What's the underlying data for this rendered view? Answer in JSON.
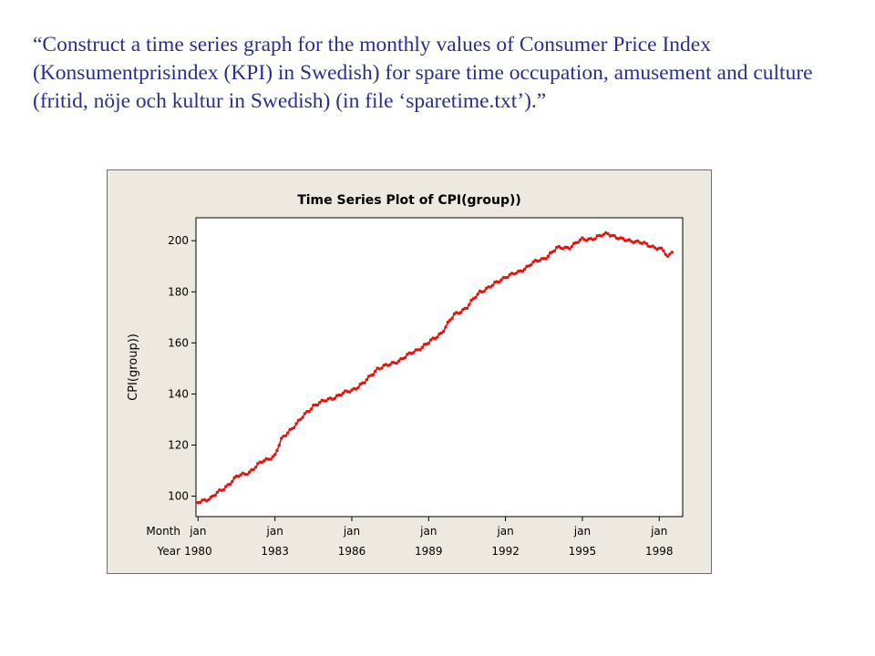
{
  "slide": {
    "text": "“Construct a time series graph for the monthly values of Consumer Price Index (Konsumentprisindex (KPI) in Swedish) for spare time occupation, amusement and culture (fritid, nöje och kultur in Swedish) (in file ‘sparetime.txt’).”"
  },
  "colors": {
    "series": "#e8120c",
    "frame_bg": "#ede9e0",
    "plot_bg": "#ffffff",
    "text": "#2b2f8c"
  },
  "chart_data": {
    "type": "line",
    "title": "Time Series Plot of CPI(group))",
    "xlabel": "",
    "ylabel": "CPI(group))",
    "x_row_labels": [
      "Month",
      "Year"
    ],
    "x_ticks": [
      {
        "month": "jan",
        "year": "1980"
      },
      {
        "month": "jan",
        "year": "1983"
      },
      {
        "month": "jan",
        "year": "1986"
      },
      {
        "month": "jan",
        "year": "1989"
      },
      {
        "month": "jan",
        "year": "1992"
      },
      {
        "month": "jan",
        "year": "1995"
      },
      {
        "month": "jan",
        "year": "1998"
      }
    ],
    "y_ticks": [
      100,
      120,
      140,
      160,
      180,
      200
    ],
    "ylim": [
      92,
      209
    ],
    "xlim": [
      "1979-12",
      "1998-12"
    ],
    "grid": false,
    "markers": "filled-circle",
    "series": [
      {
        "name": "",
        "points": [
          [
            "1980-01",
            97.5
          ],
          [
            "1980-04",
            98.6
          ],
          [
            "1980-07",
            99.3
          ],
          [
            "1981-01",
            103.0
          ],
          [
            "1981-07",
            107.5
          ],
          [
            "1982-01",
            109.5
          ],
          [
            "1982-07",
            113.5
          ],
          [
            "1983-01",
            116.0
          ],
          [
            "1983-04",
            122.0
          ],
          [
            "1983-07",
            125.0
          ],
          [
            "1984-01",
            130.0
          ],
          [
            "1984-07",
            135.5
          ],
          [
            "1985-01",
            137.5
          ],
          [
            "1985-07",
            139.5
          ],
          [
            "1986-01",
            141.5
          ],
          [
            "1986-07",
            144.5
          ],
          [
            "1987-01",
            150.0
          ],
          [
            "1987-07",
            151.5
          ],
          [
            "1988-01",
            154.0
          ],
          [
            "1988-07",
            157.0
          ],
          [
            "1989-01",
            160.0
          ],
          [
            "1989-07",
            164.0
          ],
          [
            "1990-01",
            171.0
          ],
          [
            "1990-07",
            174.0
          ],
          [
            "1991-01",
            180.0
          ],
          [
            "1991-07",
            182.5
          ],
          [
            "1992-01",
            186.0
          ],
          [
            "1992-07",
            187.5
          ],
          [
            "1993-01",
            191.0
          ],
          [
            "1993-07",
            193.0
          ],
          [
            "1994-01",
            197.0
          ],
          [
            "1994-07",
            197.5
          ],
          [
            "1995-01",
            200.5
          ],
          [
            "1995-07",
            201.0
          ],
          [
            "1996-01",
            203.0
          ],
          [
            "1996-07",
            200.5
          ],
          [
            "1997-01",
            200.0
          ],
          [
            "1997-07",
            198.5
          ],
          [
            "1998-01",
            197.0
          ],
          [
            "1998-03",
            196.0
          ],
          [
            "1998-05",
            193.5
          ],
          [
            "1998-07",
            195.5
          ]
        ]
      }
    ]
  }
}
